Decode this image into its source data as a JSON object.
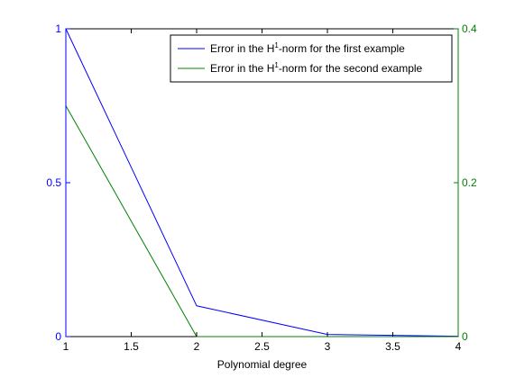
{
  "chart_data": {
    "type": "line",
    "xlabel": "Polynomial degree",
    "xlim": [
      1,
      4
    ],
    "x_ticks": [
      "1",
      "1.5",
      "2",
      "2.5",
      "3",
      "3.5",
      "4"
    ],
    "y_left": {
      "lim": [
        0,
        1
      ],
      "ticks": [
        "0",
        "0.5",
        "1"
      ],
      "color": "#0000ff"
    },
    "y_right": {
      "lim": [
        0,
        0.4
      ],
      "ticks": [
        "0",
        "0.2",
        "0.4"
      ],
      "color": "#008000"
    },
    "grid": false,
    "legend_position": "top-right",
    "series": [
      {
        "name_prefix": "Error in the H",
        "name_sup": "1",
        "name_suffix": "-norm for the first example",
        "axis": "left",
        "color": "#0000ff",
        "x": [
          1,
          2,
          3,
          4
        ],
        "y": [
          1.0,
          0.1,
          0.007,
          0.001
        ]
      },
      {
        "name_prefix": "Error in the H",
        "name_sup": "1",
        "name_suffix": "-norm for the second example",
        "axis": "right",
        "color": "#008000",
        "x": [
          1,
          2,
          3,
          4
        ],
        "y": [
          0.3,
          0.0,
          0.0,
          0.0
        ]
      }
    ]
  }
}
